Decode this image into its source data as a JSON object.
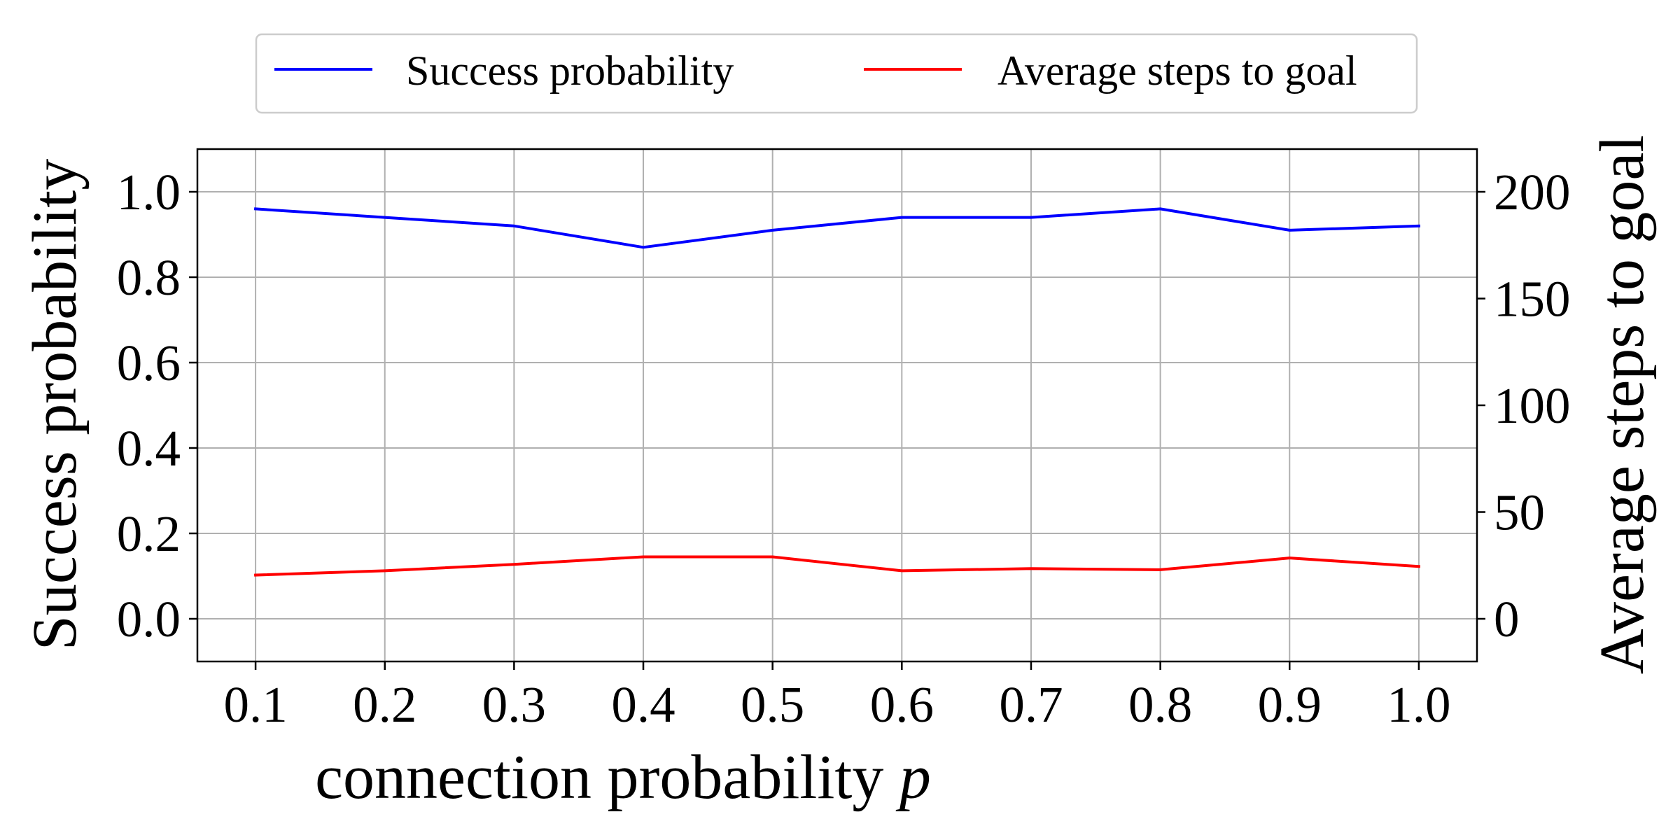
{
  "chart_data": {
    "type": "line",
    "xlabel_text": "connection probability ",
    "xlabel_var": "p",
    "ylabel_left": "Success probability",
    "ylabel_right": "Average steps to goal",
    "x": [
      0.1,
      0.2,
      0.3,
      0.4,
      0.5,
      0.6,
      0.7,
      0.8,
      0.9,
      1.0
    ],
    "xticks": [
      "0.1",
      "0.2",
      "0.3",
      "0.4",
      "0.5",
      "0.6",
      "0.7",
      "0.8",
      "0.9",
      "1.0"
    ],
    "xlim": [
      0.055,
      1.045
    ],
    "ylim_left": [
      -0.1,
      1.1
    ],
    "yticks_left": [
      "0.0",
      "0.2",
      "0.4",
      "0.6",
      "0.8",
      "1.0"
    ],
    "ylim_right": [
      -20,
      220
    ],
    "yticks_right": [
      "0",
      "50",
      "100",
      "150",
      "200"
    ],
    "grid": true,
    "legend_position": "top-center, outside plot, two columns",
    "series": [
      {
        "name": "Success probability",
        "axis": "left",
        "color": "#0000ff",
        "values": [
          0.96,
          0.94,
          0.92,
          0.87,
          0.91,
          0.94,
          0.94,
          0.96,
          0.91,
          0.92
        ]
      },
      {
        "name": "Average steps to goal",
        "axis": "right",
        "color": "#ff0000",
        "values": [
          20.5,
          22.5,
          25.5,
          29.0,
          29.0,
          22.5,
          23.5,
          23.0,
          28.5,
          24.5
        ]
      }
    ]
  }
}
